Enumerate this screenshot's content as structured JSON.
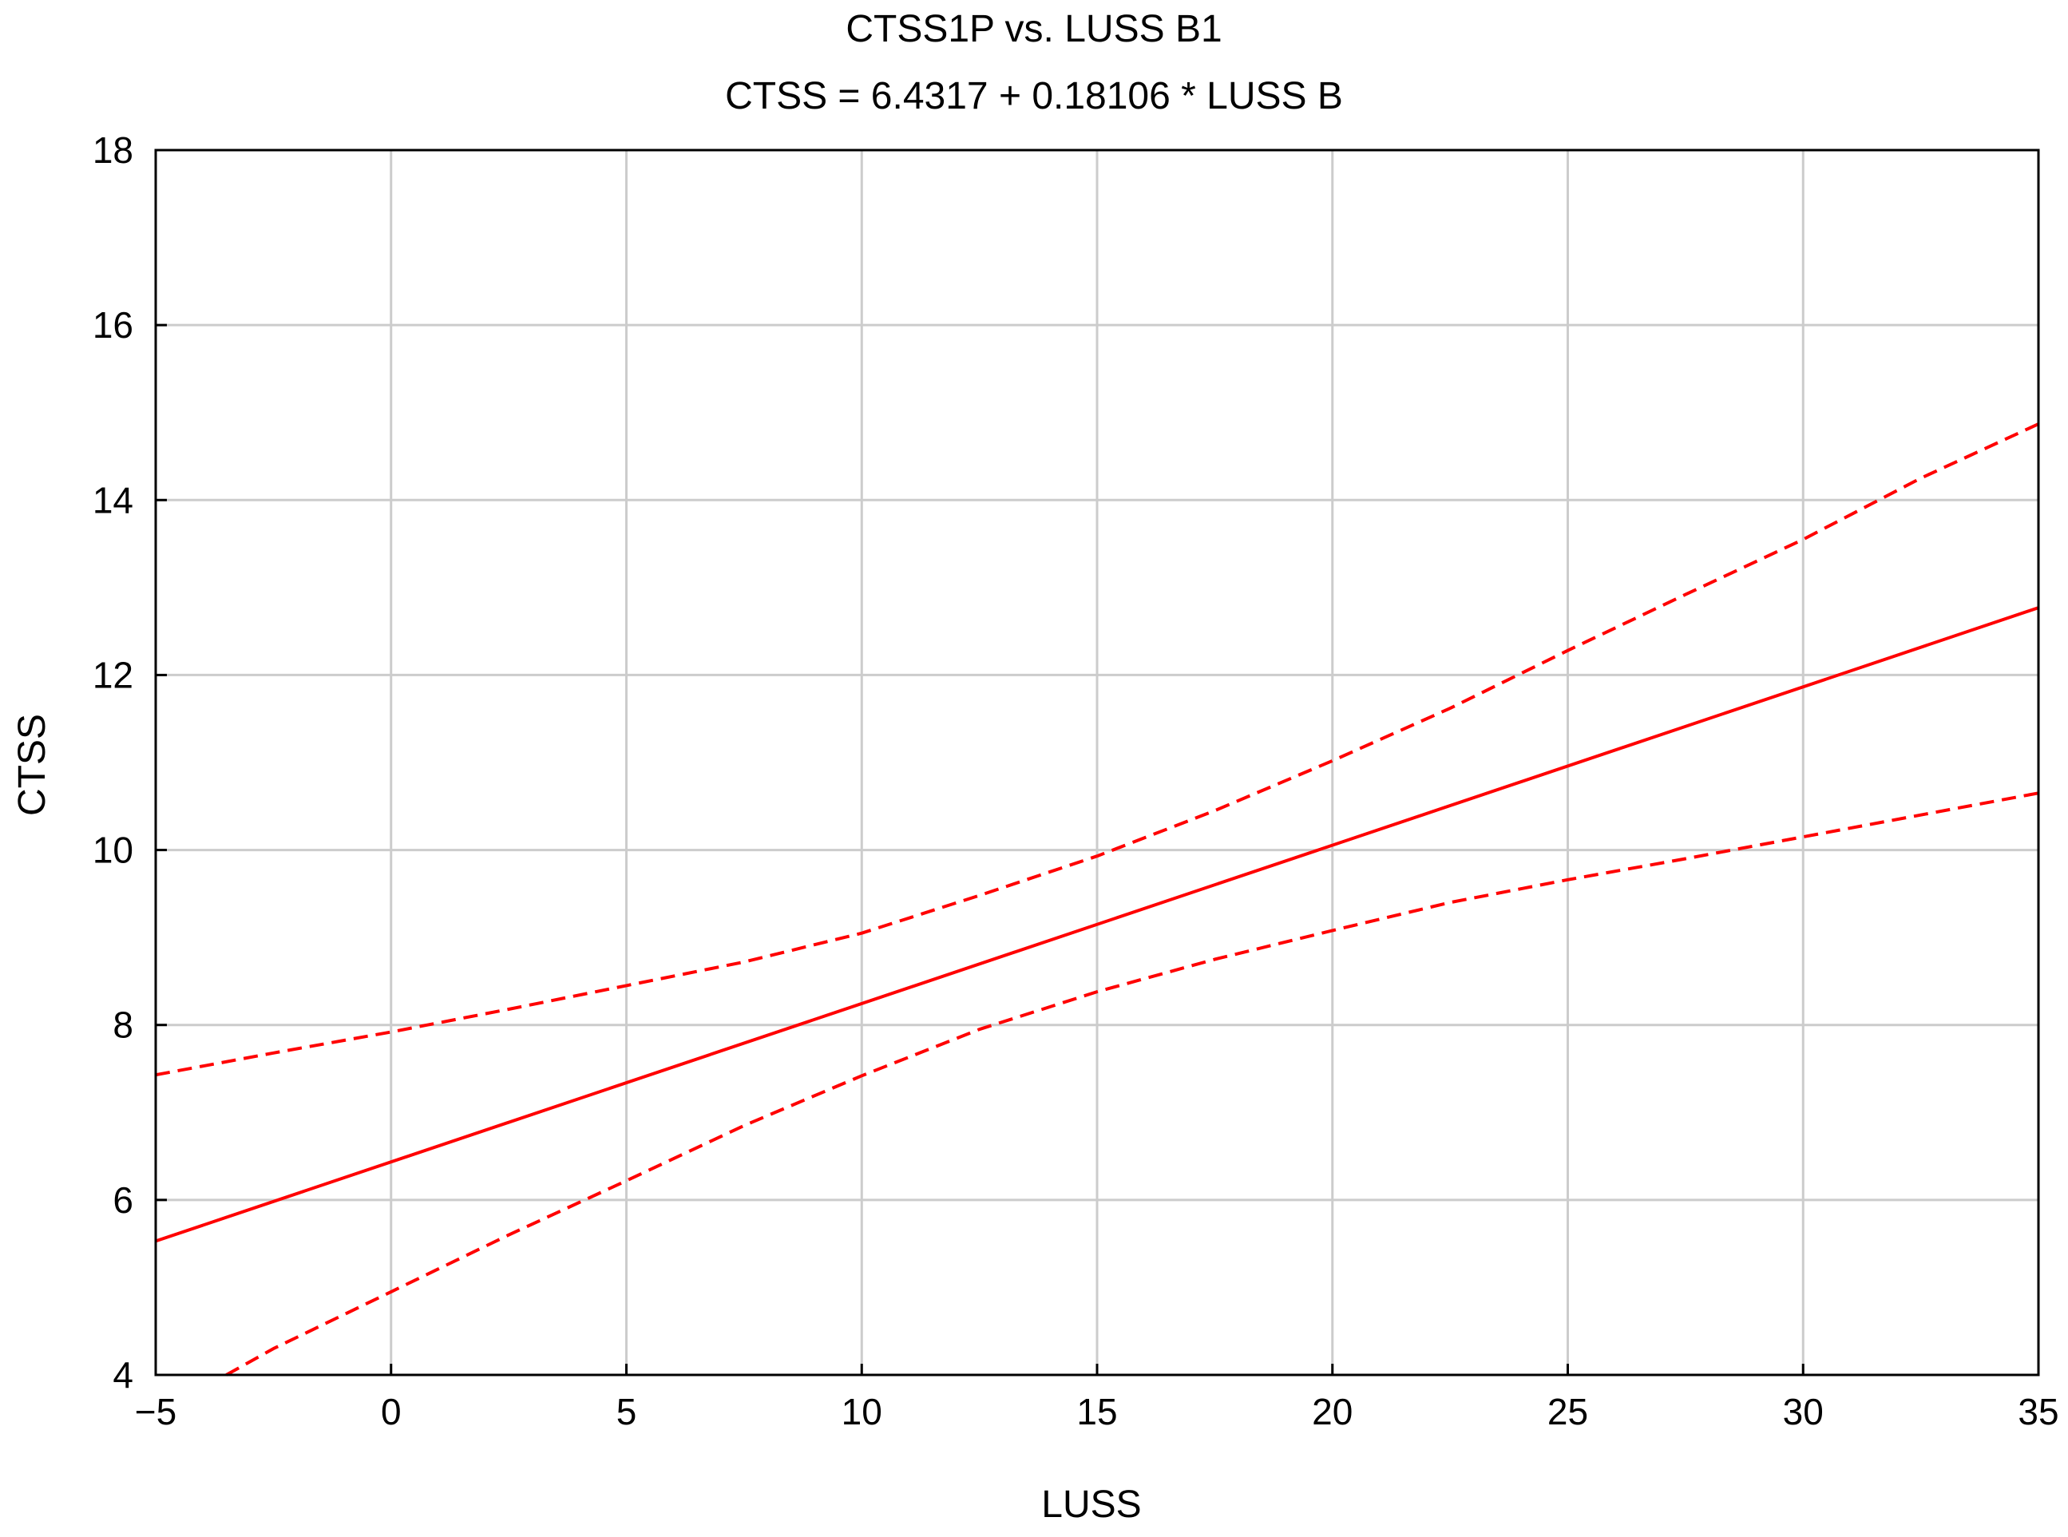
{
  "chart_data": {
    "type": "line",
    "title": "CTSS1P   vs. LUSS B1",
    "subtitle": "CTSS   = 6.4317 + 0.18106 * LUSS B",
    "xlabel": "LUSS",
    "ylabel": "CTSS",
    "xlim": [
      -5,
      35
    ],
    "ylim": [
      4,
      18
    ],
    "xticks": [
      "−5",
      "0",
      "5",
      "10",
      "15",
      "20",
      "25",
      "30",
      "35"
    ],
    "xtick_values": [
      -5,
      0,
      5,
      10,
      15,
      20,
      25,
      30,
      35
    ],
    "yticks": [
      "4",
      "6",
      "8",
      "10",
      "12",
      "14",
      "16",
      "18"
    ],
    "ytick_values": [
      4,
      6,
      8,
      10,
      12,
      14,
      16,
      18
    ],
    "grid": true,
    "legend": "none",
    "series": [
      {
        "style": "solid",
        "color": "#ff0000",
        "x": [
          -5,
          35
        ],
        "y": [
          5.53,
          12.77
        ]
      },
      {
        "style": "dashed",
        "color": "#ff0000",
        "x": [
          -5,
          -2.5,
          0,
          2.5,
          5,
          7.5,
          10,
          12.5,
          15,
          17.5,
          20,
          22.5,
          25,
          27.5,
          30,
          32.5,
          35
        ],
        "y": [
          7.43,
          7.68,
          7.92,
          8.18,
          8.45,
          8.72,
          9.05,
          9.48,
          9.93,
          10.45,
          11.02,
          11.62,
          12.28,
          12.92,
          13.55,
          14.25,
          14.87
        ]
      },
      {
        "style": "dashed",
        "color": "#ff0000",
        "x": [
          -3.5,
          -2.5,
          0,
          2.5,
          5,
          7.5,
          10,
          12.5,
          15,
          17.5,
          20,
          22.5,
          25,
          27.5,
          30,
          32.5,
          35
        ],
        "y": [
          4.0,
          4.3,
          4.95,
          5.6,
          6.22,
          6.85,
          7.42,
          7.95,
          8.38,
          8.75,
          9.08,
          9.4,
          9.66,
          9.9,
          10.15,
          10.4,
          10.65
        ]
      }
    ]
  }
}
